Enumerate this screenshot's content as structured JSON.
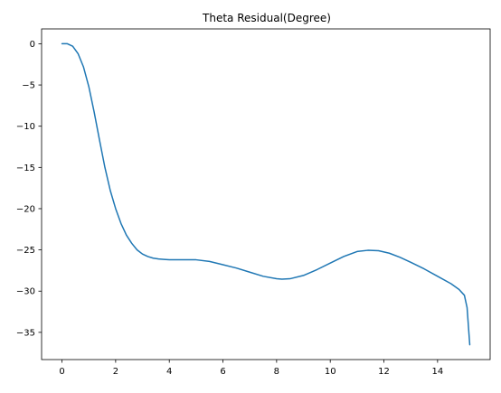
{
  "chart_data": {
    "type": "line",
    "title": "Theta Residual(Degree)",
    "xlabel": "",
    "ylabel": "",
    "xlim": [
      -0.76,
      15.96
    ],
    "ylim": [
      -38.3,
      1.8
    ],
    "xticks": [
      0,
      2,
      4,
      6,
      8,
      10,
      12,
      14
    ],
    "yticks": [
      0,
      -5,
      -10,
      -15,
      -20,
      -25,
      -30,
      -35
    ],
    "grid": false,
    "series": [
      {
        "color": "#1f77b4",
        "x": [
          0,
          0.2,
          0.4,
          0.6,
          0.8,
          1.0,
          1.2,
          1.4,
          1.6,
          1.8,
          2.0,
          2.2,
          2.4,
          2.6,
          2.8,
          3.0,
          3.2,
          3.4,
          3.6,
          3.8,
          4.0,
          4.5,
          5.0,
          5.5,
          6.0,
          6.5,
          7.0,
          7.5,
          8.0,
          8.2,
          8.5,
          9.0,
          9.5,
          10.0,
          10.5,
          11.0,
          11.4,
          11.8,
          12.2,
          12.6,
          13.0,
          13.5,
          14.0,
          14.5,
          14.8,
          15.0,
          15.1,
          15.2
        ],
        "values": [
          0,
          0,
          -0.3,
          -1.2,
          -2.8,
          -5.2,
          -8.3,
          -11.7,
          -15.0,
          -17.8,
          -20.0,
          -21.8,
          -23.2,
          -24.2,
          -25.0,
          -25.5,
          -25.8,
          -26.0,
          -26.1,
          -26.15,
          -26.2,
          -26.2,
          -26.2,
          -26.4,
          -26.8,
          -27.2,
          -27.7,
          -28.2,
          -28.5,
          -28.55,
          -28.5,
          -28.1,
          -27.4,
          -26.6,
          -25.8,
          -25.2,
          -25.05,
          -25.1,
          -25.4,
          -25.9,
          -26.5,
          -27.3,
          -28.2,
          -29.1,
          -29.8,
          -30.5,
          -32.0,
          -36.5
        ]
      }
    ]
  }
}
